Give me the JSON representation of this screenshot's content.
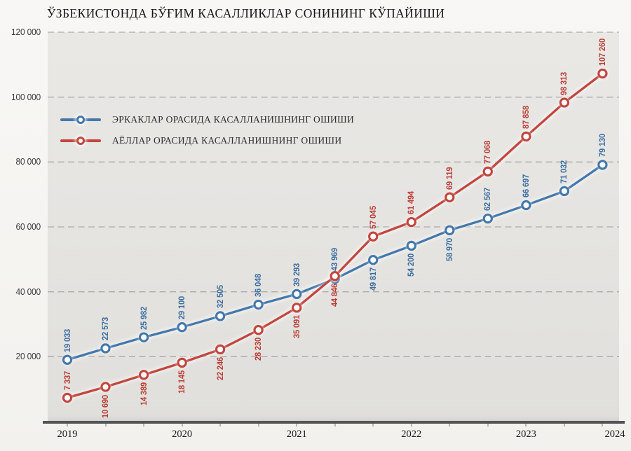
{
  "title": "ЎЗБЕКИСТОНДА БЎҒИМ КАСАЛЛИКЛАР СОНИНИНГ КЎПАЙИШИ",
  "chart_data": {
    "type": "line",
    "title": "ЎЗБЕКИСТОНДА БЎҒИМ КАСАЛЛИКЛАР СОНИНИНГ КЎПАЙИШИ",
    "x_tick_labels": [
      "2019",
      "2020",
      "2021",
      "2022",
      "2023",
      "2024"
    ],
    "points_per_year": 3,
    "y_ticks": [
      "120 000",
      "100 000",
      "80 000",
      "60 000",
      "40 000",
      "20 000"
    ],
    "y_min": 0,
    "y_max": 120000,
    "grid": "dashed-horizontal",
    "legend_position": "top-left-inside",
    "axis_color": "#535456",
    "gridline_color": "#acaba8",
    "series": [
      {
        "name": "ЭРКАКЛАР ОРАСИДА КАСАЛЛАНИШНИНГ ОШИШИ",
        "color": "#4478ab",
        "label_color": "#3c6da1",
        "values": [
          19033,
          22573,
          25982,
          29100,
          32505,
          36048,
          39293,
          43969,
          49817,
          54200,
          58970,
          62567,
          66697,
          71032,
          79130
        ],
        "label_side": [
          "above",
          "above",
          "above",
          "above",
          "above",
          "above",
          "above",
          "above",
          "below",
          "below",
          "below",
          "above",
          "above",
          "above",
          "above"
        ]
      },
      {
        "name": "АЁЛЛАР ОРАСИДА КАСАЛЛАНИШНИНГ ОШИШИ",
        "color": "#c2463e",
        "label_color": "#bb3e37",
        "values": [
          7337,
          10690,
          14389,
          18145,
          22246,
          28230,
          35091,
          44846,
          57045,
          61494,
          69119,
          77068,
          87858,
          98313,
          107260
        ],
        "label_side": [
          "above",
          "below",
          "below",
          "below",
          "below",
          "below",
          "below",
          "below",
          "above",
          "above",
          "above",
          "above",
          "above",
          "above",
          "above"
        ]
      }
    ]
  }
}
